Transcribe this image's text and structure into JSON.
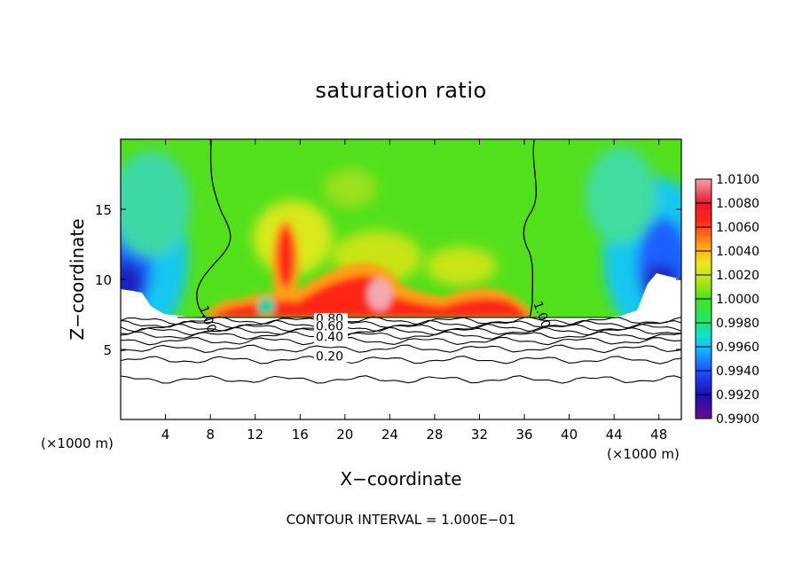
{
  "chart_data": {
    "type": "heatmap",
    "title": "saturation ratio",
    "xlabel": "X−coordinate",
    "ylabel": "Z−coordinate",
    "x_unit_note": "(×1000 m)",
    "x_unit_note_right": "(×1000 m)",
    "xlim": [
      0,
      50
    ],
    "ylim": [
      0,
      20
    ],
    "x_ticks": [
      4,
      8,
      12,
      16,
      20,
      24,
      28,
      32,
      36,
      40,
      44,
      48
    ],
    "y_ticks": [
      5,
      10,
      15
    ],
    "colorbar": {
      "ticks": [
        "1.0100",
        "1.0080",
        "1.0060",
        "1.0040",
        "1.0020",
        "1.0000",
        "0.9980",
        "0.9960",
        "0.9940",
        "0.9920",
        "0.9900"
      ],
      "min": 0.99,
      "max": 1.01,
      "stops": [
        {
          "value": 0.99,
          "color": "#6a0a8a"
        },
        {
          "value": 0.992,
          "color": "#1a10b4"
        },
        {
          "value": 0.994,
          "color": "#1e50ff"
        },
        {
          "value": 0.996,
          "color": "#19c0ff"
        },
        {
          "value": 0.997,
          "color": "#14e0c8"
        },
        {
          "value": 0.998,
          "color": "#18e878"
        },
        {
          "value": 1.0,
          "color": "#46e21a"
        },
        {
          "value": 1.0015,
          "color": "#b4e614"
        },
        {
          "value": 1.003,
          "color": "#f0e61e"
        },
        {
          "value": 1.0045,
          "color": "#ff9e14"
        },
        {
          "value": 1.0065,
          "color": "#ff2818"
        },
        {
          "value": 1.008,
          "color": "#e81830"
        },
        {
          "value": 1.01,
          "color": "#f4a0a8"
        }
      ]
    },
    "contour_labels": [
      {
        "text": "1.00",
        "x": 7.0,
        "y": 8.0
      },
      {
        "text": "1.00",
        "x": 36.8,
        "y": 8.3
      },
      {
        "text": "0.80",
        "x": 17.4,
        "y": 6.9
      },
      {
        "text": "0.60",
        "x": 17.4,
        "y": 6.35
      },
      {
        "text": "0.40",
        "x": 17.4,
        "y": 5.6
      },
      {
        "text": "0.20",
        "x": 17.4,
        "y": 4.2
      }
    ],
    "contour_levels_below": [
      {
        "level": 0.9,
        "z": 7.05
      },
      {
        "level": 0.8,
        "z": 6.8
      },
      {
        "level": 0.7,
        "z": 6.55
      },
      {
        "level": 0.6,
        "z": 6.3
      },
      {
        "level": 0.5,
        "z": 6.0
      },
      {
        "level": 0.4,
        "z": 5.6
      },
      {
        "level": 0.3,
        "z": 5.05
      },
      {
        "level": 0.2,
        "z": 4.25
      },
      {
        "level": 0.1,
        "z": 2.85
      }
    ],
    "contour_interval_note": "CONTOUR INTERVAL = 1.000E−01"
  }
}
